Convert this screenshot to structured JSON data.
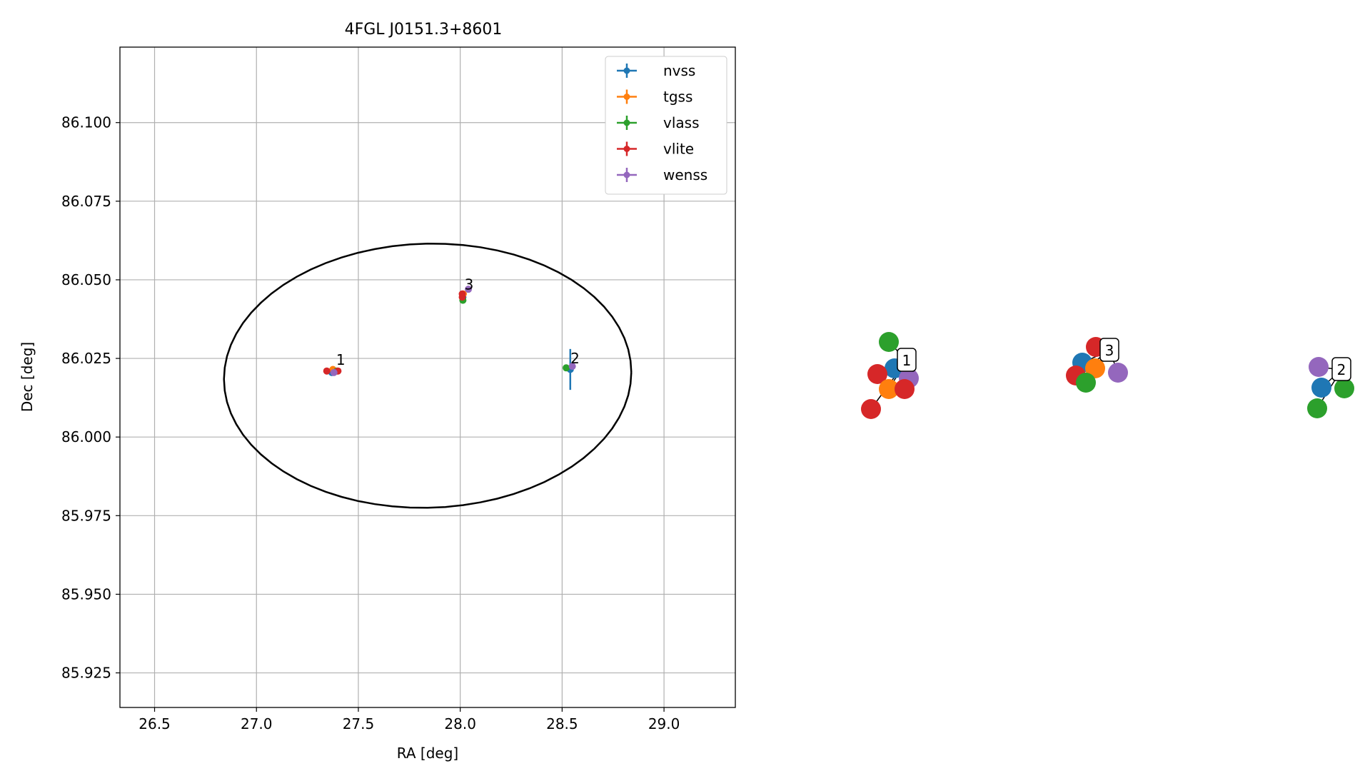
{
  "chart_data": [
    {
      "type": "scatter",
      "title": "4FGL J0151.3+8601",
      "xlabel": "RA [deg]",
      "ylabel": "Dec [deg]",
      "xlim": [
        26.33,
        29.35
      ],
      "ylim": [
        85.914,
        86.124
      ],
      "xticks": [
        "26.5",
        "27.0",
        "27.5",
        "28.0",
        "28.5",
        "29.0"
      ],
      "yticks": [
        "85.925",
        "85.950",
        "85.975",
        "86.000",
        "86.025",
        "86.050",
        "86.075",
        "86.100"
      ],
      "grid": true,
      "legend_position": "top-right",
      "series": [
        {
          "name": "nvss",
          "color": "#1f77b4",
          "points": [
            {
              "x": 27.37,
              "y": 86.0205,
              "xerr": 0.004,
              "yerr": 0.0006
            },
            {
              "x": 28.54,
              "y": 86.0215,
              "xerr": 0.01,
              "yerr": 0.0065
            },
            {
              "x": 28.013,
              "y": 86.0445,
              "xerr": 0.003,
              "yerr": 0.0015
            }
          ]
        },
        {
          "name": "tgss",
          "color": "#ff7f0e",
          "points": [
            {
              "x": 27.375,
              "y": 86.0215,
              "xerr": 0.003,
              "yerr": 0.0005
            },
            {
              "x": 28.015,
              "y": 86.0455,
              "xerr": 0.003,
              "yerr": 0.0005
            }
          ]
        },
        {
          "name": "vlass",
          "color": "#2ca02c",
          "points": [
            {
              "x": 27.395,
              "y": 86.021,
              "xerr": 0.001,
              "yerr": 0.0003
            },
            {
              "x": 28.52,
              "y": 86.022,
              "xerr": 0.001,
              "yerr": 0.0003
            },
            {
              "x": 28.013,
              "y": 86.0435,
              "xerr": 0.001,
              "yerr": 0.0003
            }
          ]
        },
        {
          "name": "vlite",
          "color": "#d62728",
          "points": [
            {
              "x": 27.345,
              "y": 86.021,
              "xerr": 0.004,
              "yerr": 0.0005
            },
            {
              "x": 27.4,
              "y": 86.021,
              "xerr": 0.004,
              "yerr": 0.0005
            },
            {
              "x": 28.01,
              "y": 86.0445,
              "xerr": 0.004,
              "yerr": 0.0005
            },
            {
              "x": 28.01,
              "y": 86.0455,
              "xerr": 0.003,
              "yerr": 0.0005
            }
          ]
        },
        {
          "name": "wenss",
          "color": "#9467bd",
          "points": [
            {
              "x": 27.38,
              "y": 86.0205,
              "xerr": 0.005,
              "yerr": 0.0008
            },
            {
              "x": 28.55,
              "y": 86.0225,
              "xerr": 0.005,
              "yerr": 0.0008
            },
            {
              "x": 28.04,
              "y": 86.047,
              "xerr": 0.005,
              "yerr": 0.0008
            }
          ]
        }
      ],
      "ellipse": {
        "center": [
          27.84,
          86.0195
        ],
        "semi_x": 1.0,
        "semi_y": 0.042,
        "angle_deg": 1.5,
        "color": "#000000"
      },
      "annotations": [
        {
          "text": "1",
          "x": 27.37,
          "y": 86.0225
        },
        {
          "text": "2",
          "x": 28.52,
          "y": 86.023
        },
        {
          "text": "3",
          "x": 28.0,
          "y": 86.0465
        }
      ]
    },
    {
      "type": "scatter",
      "note_axes": "none",
      "clusters": [
        {
          "label": "1",
          "members": [
            {
              "series": "vlass",
              "color": "#2ca02c"
            },
            {
              "series": "nvss",
              "color": "#1f77b4"
            },
            {
              "series": "wenss",
              "color": "#9467bd"
            },
            {
              "series": "vlite",
              "color": "#d62728"
            },
            {
              "series": "tgss",
              "color": "#ff7f0e"
            },
            {
              "series": "vlite",
              "color": "#d62728"
            },
            {
              "series": "vlite",
              "color": "#d62728"
            }
          ]
        },
        {
          "label": "3",
          "members": [
            {
              "series": "vlite",
              "color": "#d62728"
            },
            {
              "series": "nvss",
              "color": "#1f77b4"
            },
            {
              "series": "tgss",
              "color": "#ff7f0e"
            },
            {
              "series": "wenss",
              "color": "#9467bd"
            },
            {
              "series": "vlite",
              "color": "#d62728"
            },
            {
              "series": "vlass",
              "color": "#2ca02c"
            }
          ]
        },
        {
          "label": "2",
          "members": [
            {
              "series": "wenss",
              "color": "#9467bd"
            },
            {
              "series": "nvss",
              "color": "#1f77b4"
            },
            {
              "series": "vlass",
              "color": "#2ca02c"
            },
            {
              "series": "vlass",
              "color": "#2ca02c"
            }
          ]
        }
      ]
    }
  ]
}
